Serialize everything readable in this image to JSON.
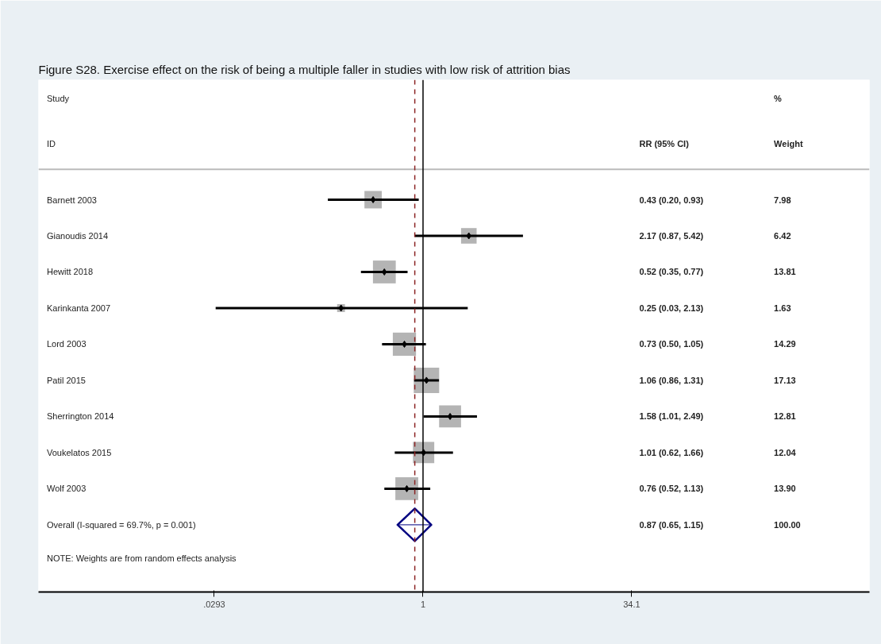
{
  "chart_data": {
    "type": "bubble",
    "orientation": "horizontal",
    "log": "x",
    "grid": false,
    "tick_labels": "x",
    "title": "Figure S28. Exercise effect on the risk of being a multiple faller in studies with low risk of attrition bias",
    "categories": [
      "Barnett 2003",
      "Gianoudis 2014",
      "Hewitt 2018",
      "Karinkanta 2007",
      "Lord 2003",
      "Patil 2015",
      "Sherrington 2014",
      "Voukelatos 2015",
      "Wolf 2003",
      "Overall  (I-squared = 69.7%, p = 0.001)"
    ],
    "series": [
      {
        "color": "#b4b4b4",
        "values": [
          0.43,
          2.17,
          0.52,
          0.25,
          0.73,
          1.06,
          1.58,
          1.01,
          0.76,
          null
        ],
        "sizes": [
          0.466,
          0.375,
          0.806,
          0.095,
          0.834,
          1,
          0.748,
          0.703,
          0.811,
          null
        ]
      },
      {
        "type": "scatter",
        "marker": "diamond",
        "color": "#000000",
        "values": [
          0.43,
          2.17,
          0.52,
          0.25,
          0.73,
          1.06,
          1.58,
          1.01,
          0.76,
          null
        ],
        "errors": [
          [
            0.2,
            0.93
          ],
          [
            0.87,
            5.42
          ],
          [
            0.35,
            0.77
          ],
          [
            0.03,
            2.13
          ],
          [
            0.5,
            1.05
          ],
          [
            0.86,
            1.31
          ],
          [
            1.01,
            2.49
          ],
          [
            0.62,
            1.66
          ],
          [
            0.52,
            1.13
          ],
          null
        ]
      },
      {
        "type": "scatter",
        "marker": "diamond",
        "color": "#000080",
        "values": [
          null,
          null,
          null,
          null,
          null,
          null,
          null,
          null,
          null,
          0.87
        ],
        "errors": [
          null,
          null,
          null,
          null,
          null,
          null,
          null,
          null,
          null,
          [
            0.65,
            1.15
          ]
        ]
      }
    ],
    "xlim": [
      0.0015,
      1900
    ],
    "xticks": [
      {
        "value": 0.0293,
        "label": ".0293"
      },
      1,
      34.1
    ],
    "ref_lines": [
      {
        "axis": "x",
        "value": 1,
        "label": null,
        "color": "#000000",
        "line_style": "solid"
      },
      {
        "axis": "x",
        "value": 0.87,
        "label": null,
        "color": "#8b2323",
        "line_style": "dashed"
      }
    ],
    "annotations": [
      "Study",
      "ID",
      "RR (95% CI)",
      "%",
      "Weight",
      "NOTE: Weights are from random effects analysis",
      "0.43 (0.20, 0.93)",
      "2.17 (0.87, 5.42)",
      "0.52 (0.35, 0.77)",
      "0.25 (0.03, 2.13)",
      "0.73 (0.50, 1.05)",
      "1.06 (0.86, 1.31)",
      "1.58 (1.01, 2.49)",
      "1.01 (0.62, 1.66)",
      "0.76 (0.52, 1.13)",
      "0.87 (0.65, 1.15)",
      "7.98",
      "6.42",
      "13.81",
      "1.63",
      "14.29",
      "17.13",
      "12.81",
      "12.04",
      "13.90",
      "100.00"
    ]
  }
}
